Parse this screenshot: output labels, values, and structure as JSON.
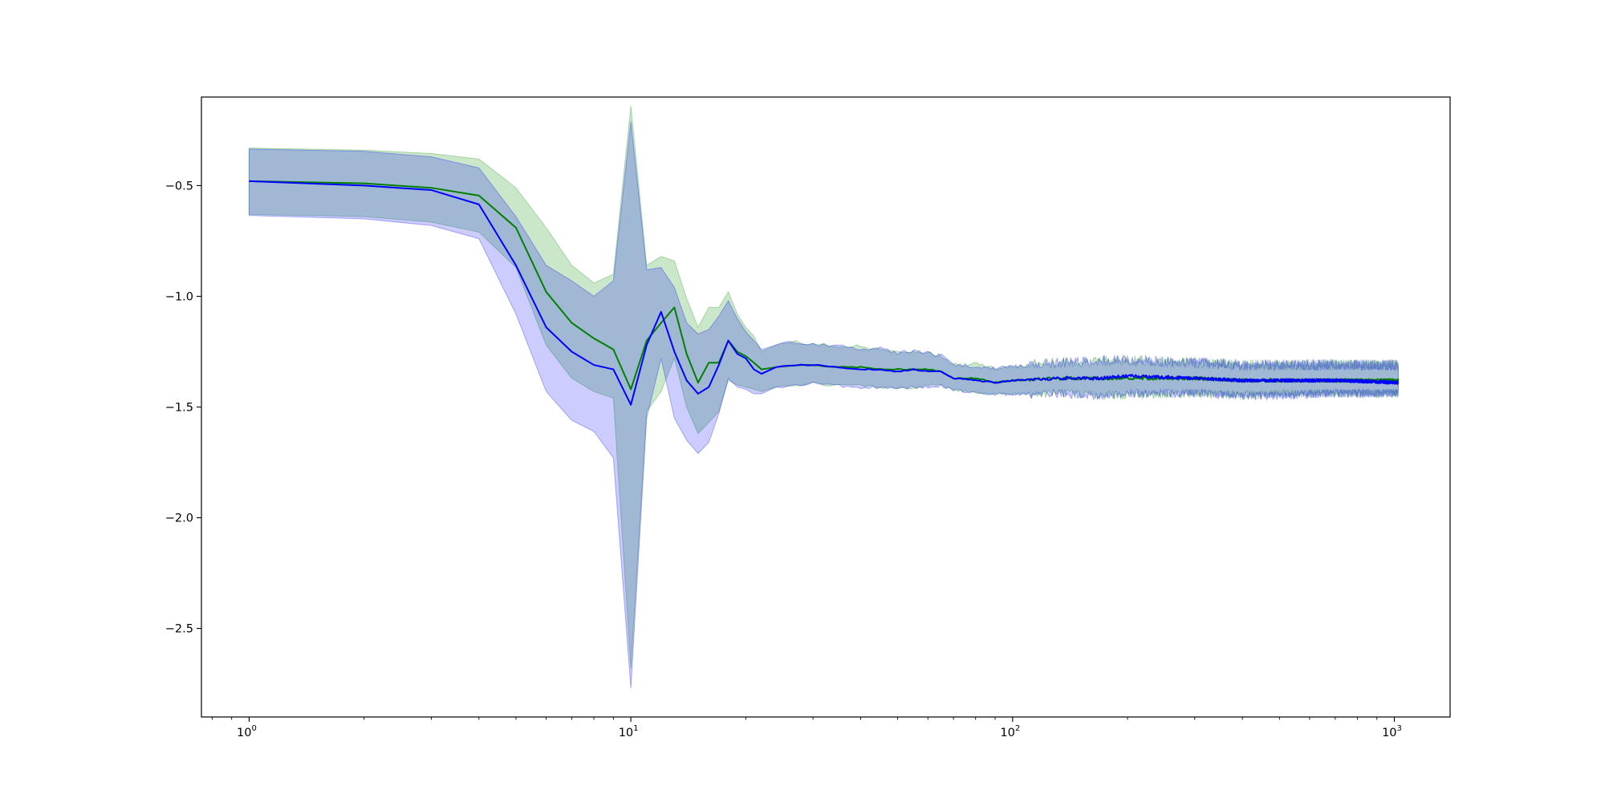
{
  "chart_data": {
    "type": "area",
    "title": "",
    "xlabel": "",
    "ylabel": "",
    "xscale": "log",
    "xlim": [
      0.75,
      1400
    ],
    "ylim": [
      -2.9,
      -0.1
    ],
    "grid": false,
    "legend": "none",
    "x_ticks_major": [
      {
        "value": 1,
        "base": "10",
        "exp": "0"
      },
      {
        "value": 10,
        "base": "10",
        "exp": "1"
      },
      {
        "value": 100,
        "base": "10",
        "exp": "2"
      },
      {
        "value": 1000,
        "base": "10",
        "exp": "3"
      }
    ],
    "y_ticks": [
      {
        "value": -0.5,
        "label": "−0.5"
      },
      {
        "value": -1.0,
        "label": "−1.0"
      },
      {
        "value": -1.5,
        "label": "−1.5"
      },
      {
        "value": -2.0,
        "label": "−2.0"
      },
      {
        "value": -2.5,
        "label": "−2.5"
      }
    ],
    "noise_seed": 7,
    "series": [
      {
        "color": "#008000",
        "band_color": "#2ca02c",
        "band_opacity": 0.25,
        "points": [
          [
            1,
            -0.48,
            -0.33,
            -0.63
          ],
          [
            2,
            -0.49,
            -0.34,
            -0.64
          ],
          [
            3,
            -0.51,
            -0.355,
            -0.665
          ],
          [
            4,
            -0.545,
            -0.38,
            -0.71
          ],
          [
            5,
            -0.69,
            -0.51,
            -0.87
          ],
          [
            6,
            -0.98,
            -0.69,
            -1.22
          ],
          [
            7,
            -1.12,
            -0.86,
            -1.37
          ],
          [
            8,
            -1.19,
            -0.94,
            -1.43
          ],
          [
            9,
            -1.24,
            -0.9,
            -1.46
          ],
          [
            10,
            -1.42,
            -0.14,
            -2.68
          ],
          [
            11,
            -1.2,
            -0.86,
            -1.52
          ],
          [
            12,
            -1.12,
            -0.82,
            -1.43
          ],
          [
            13,
            -1.05,
            -0.84,
            -1.28
          ],
          [
            14,
            -1.26,
            -1.01,
            -1.5
          ],
          [
            15,
            -1.39,
            -1.14,
            -1.62
          ],
          [
            16,
            -1.3,
            -1.05,
            -1.57
          ],
          [
            17,
            -1.3,
            -1.05,
            -1.52
          ],
          [
            18,
            -1.2,
            -0.98,
            -1.38
          ],
          [
            19,
            -1.25,
            -1.08,
            -1.4
          ],
          [
            20,
            -1.27,
            -1.14,
            -1.41
          ],
          [
            21,
            -1.3,
            -1.18,
            -1.42
          ],
          [
            22,
            -1.33,
            -1.25,
            -1.43
          ],
          [
            24,
            -1.32,
            -1.22,
            -1.41
          ],
          [
            27,
            -1.31,
            -1.21,
            -1.4
          ],
          [
            30,
            -1.31,
            -1.22,
            -1.39
          ],
          [
            35,
            -1.32,
            -1.23,
            -1.4
          ],
          [
            40,
            -1.32,
            -1.23,
            -1.4
          ],
          [
            45,
            -1.33,
            -1.24,
            -1.41
          ],
          [
            50,
            -1.33,
            -1.26,
            -1.41
          ],
          [
            55,
            -1.33,
            -1.25,
            -1.41
          ],
          [
            60,
            -1.33,
            -1.26,
            -1.4
          ],
          [
            65,
            -1.34,
            -1.27,
            -1.4
          ],
          [
            70,
            -1.37,
            -1.31,
            -1.42
          ],
          [
            80,
            -1.37,
            -1.31,
            -1.43
          ],
          [
            90,
            -1.39,
            -1.33,
            -1.44
          ],
          [
            100,
            -1.38,
            -1.32,
            -1.44
          ],
          [
            130,
            -1.37,
            -1.31,
            -1.43
          ],
          [
            170,
            -1.37,
            -1.3,
            -1.44
          ],
          [
            200,
            -1.37,
            -1.3,
            -1.44
          ],
          [
            300,
            -1.37,
            -1.31,
            -1.43
          ],
          [
            400,
            -1.38,
            -1.32,
            -1.44
          ],
          [
            500,
            -1.38,
            -1.32,
            -1.43
          ],
          [
            700,
            -1.38,
            -1.32,
            -1.43
          ],
          [
            1024,
            -1.38,
            -1.32,
            -1.43
          ]
        ]
      },
      {
        "color": "#0000ff",
        "band_color": "#0000ff",
        "band_opacity": 0.2,
        "points": [
          [
            1,
            -0.48,
            -0.335,
            -0.635
          ],
          [
            2,
            -0.5,
            -0.345,
            -0.65
          ],
          [
            3,
            -0.52,
            -0.37,
            -0.68
          ],
          [
            4,
            -0.585,
            -0.42,
            -0.74
          ],
          [
            5,
            -0.86,
            -0.64,
            -1.08
          ],
          [
            6,
            -1.14,
            -0.86,
            -1.43
          ],
          [
            7,
            -1.25,
            -0.93,
            -1.56
          ],
          [
            8,
            -1.31,
            -1.0,
            -1.61
          ],
          [
            9,
            -1.33,
            -0.93,
            -1.73
          ],
          [
            10,
            -1.49,
            -0.21,
            -2.77
          ],
          [
            11,
            -1.22,
            -0.88,
            -1.55
          ],
          [
            12,
            -1.07,
            -0.87,
            -1.28
          ],
          [
            13,
            -1.25,
            -0.96,
            -1.55
          ],
          [
            14,
            -1.38,
            -1.12,
            -1.65
          ],
          [
            15,
            -1.44,
            -1.17,
            -1.71
          ],
          [
            16,
            -1.41,
            -1.15,
            -1.66
          ],
          [
            17,
            -1.31,
            -1.09,
            -1.53
          ],
          [
            18,
            -1.2,
            -1.02,
            -1.37
          ],
          [
            19,
            -1.26,
            -1.1,
            -1.41
          ],
          [
            20,
            -1.28,
            -1.16,
            -1.42
          ],
          [
            21,
            -1.33,
            -1.2,
            -1.44
          ],
          [
            22,
            -1.35,
            -1.24,
            -1.44
          ],
          [
            24,
            -1.32,
            -1.22,
            -1.41
          ],
          [
            27,
            -1.31,
            -1.21,
            -1.4
          ],
          [
            30,
            -1.31,
            -1.22,
            -1.39
          ],
          [
            35,
            -1.32,
            -1.23,
            -1.4
          ],
          [
            40,
            -1.33,
            -1.24,
            -1.41
          ],
          [
            45,
            -1.33,
            -1.24,
            -1.41
          ],
          [
            50,
            -1.34,
            -1.26,
            -1.41
          ],
          [
            55,
            -1.33,
            -1.25,
            -1.41
          ],
          [
            60,
            -1.34,
            -1.26,
            -1.41
          ],
          [
            65,
            -1.34,
            -1.27,
            -1.4
          ],
          [
            70,
            -1.37,
            -1.31,
            -1.42
          ],
          [
            80,
            -1.38,
            -1.32,
            -1.43
          ],
          [
            90,
            -1.39,
            -1.33,
            -1.44
          ],
          [
            100,
            -1.38,
            -1.32,
            -1.44
          ],
          [
            130,
            -1.37,
            -1.31,
            -1.43
          ],
          [
            170,
            -1.37,
            -1.3,
            -1.44
          ],
          [
            200,
            -1.36,
            -1.3,
            -1.43
          ],
          [
            300,
            -1.37,
            -1.31,
            -1.43
          ],
          [
            400,
            -1.38,
            -1.32,
            -1.44
          ],
          [
            500,
            -1.38,
            -1.32,
            -1.44
          ],
          [
            700,
            -1.38,
            -1.32,
            -1.43
          ],
          [
            1024,
            -1.39,
            -1.32,
            -1.43
          ]
        ]
      }
    ]
  }
}
